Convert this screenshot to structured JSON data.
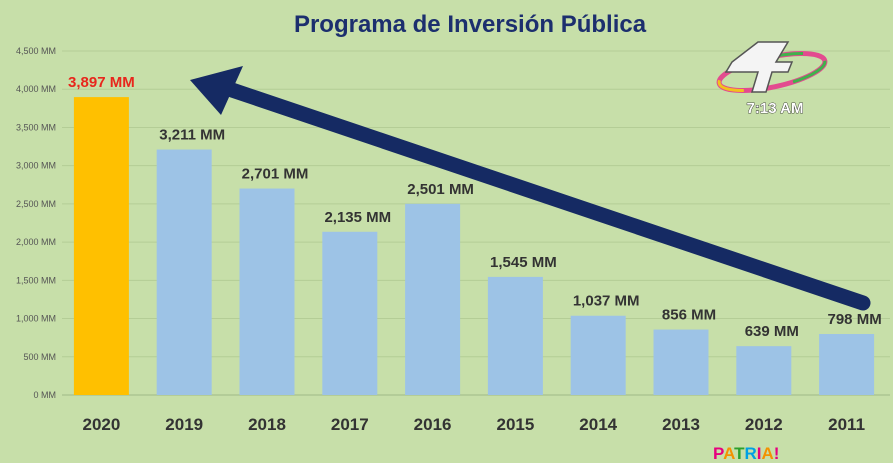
{
  "chart_data": {
    "type": "bar",
    "title": "Programa de Inversión Pública",
    "categories": [
      "2020",
      "2019",
      "2018",
      "2017",
      "2016",
      "2015",
      "2014",
      "2013",
      "2012",
      "2011"
    ],
    "values": [
      3897,
      3211,
      2701,
      2135,
      2501,
      1545,
      1037,
      856,
      639,
      798
    ],
    "data_labels": [
      "3,897 MM",
      "3,211 MM",
      "2,701 MM",
      "2,135 MM",
      "2,501 MM",
      "1,545 MM",
      "1,037 MM",
      "856 MM",
      "639 MM",
      "798 MM"
    ],
    "y_ticks": [
      0,
      500,
      1000,
      1500,
      2000,
      2500,
      3000,
      3500,
      4000,
      4500
    ],
    "y_tick_labels": [
      "0 MM",
      "500 MM",
      "1,000 MM",
      "1,500 MM",
      "2,000 MM",
      "2,500 MM",
      "3,000 MM",
      "3,500 MM",
      "4,000 MM",
      "4,500 MM"
    ],
    "ylim": [
      0,
      4500
    ],
    "xlabel": "",
    "ylabel": "",
    "grid": true,
    "highlight_index": 0,
    "annotation": "arrow from 2011 up to 2020"
  },
  "overlay": {
    "time": "7:13 AM",
    "channel_logo": "canal-4-logo",
    "brand": "PATRIA!"
  },
  "colors": {
    "background": "#c7dfa9",
    "bar": "#9dc3e6",
    "bar_highlight": "#ffc000",
    "arrow": "#152a63",
    "title": "#1c2f6e",
    "highlight_label": "#e8261c"
  }
}
